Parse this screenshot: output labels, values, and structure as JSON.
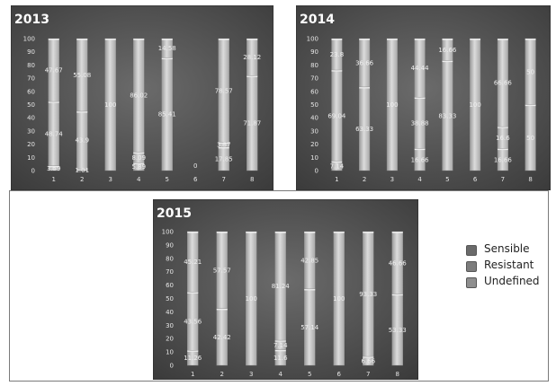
{
  "chart_data": [
    {
      "type": "bar",
      "stacked": true,
      "title": "2013",
      "categories": [
        "1",
        "2",
        "3",
        "4",
        "5",
        "6",
        "7",
        "8"
      ],
      "ylim": [
        0,
        100
      ],
      "yticks": [
        0,
        10,
        20,
        30,
        40,
        50,
        60,
        70,
        80,
        90,
        100
      ],
      "series": [
        {
          "name": "Sensible",
          "values": [
            47.67,
            55.08,
            0,
            86.02,
            14.58,
            0,
            78.57,
            28.12
          ]
        },
        {
          "name": "Resistant",
          "values": [
            48.74,
            43.9,
            100,
            8.09,
            85.41,
            0,
            3.57,
            71.87
          ]
        },
        {
          "name": "Undefined",
          "values": [
            3.59,
            1.01,
            0,
            5.89,
            0,
            0,
            17.85,
            0
          ]
        }
      ],
      "data_labels": [
        [
          "47.67",
          "48.74",
          "3.59"
        ],
        [
          "55.08",
          "43.9",
          "1.01"
        ],
        [
          "",
          "100",
          ""
        ],
        [
          "86.02",
          "8.09",
          "5.89"
        ],
        [
          "14.58",
          "85.41",
          ""
        ],
        [
          "",
          "0",
          ""
        ],
        [
          "78.57",
          "3.57",
          "17.85"
        ],
        [
          "28.12",
          "71.87",
          ""
        ]
      ]
    },
    {
      "type": "bar",
      "stacked": true,
      "title": "2014",
      "categories": [
        "1",
        "2",
        "3",
        "4",
        "5",
        "6",
        "7",
        "8"
      ],
      "ylim": [
        0,
        100
      ],
      "yticks": [
        0,
        10,
        20,
        30,
        40,
        50,
        60,
        70,
        80,
        90,
        100
      ],
      "series": [
        {
          "name": "Sensible",
          "values": [
            23.8,
            36.66,
            0,
            44.44,
            16.66,
            0,
            66.66,
            50
          ]
        },
        {
          "name": "Resistant",
          "values": [
            69.04,
            63.33,
            100,
            38.88,
            83.33,
            100,
            16.6,
            50
          ]
        },
        {
          "name": "Undefined",
          "values": [
            7.14,
            0,
            0,
            16.66,
            0,
            0,
            16.66,
            0
          ]
        }
      ],
      "data_labels": [
        [
          "23.8",
          "69.04",
          "7.14"
        ],
        [
          "36.66",
          "63.33",
          ""
        ],
        [
          "",
          "100",
          ""
        ],
        [
          "44.44",
          "38.88",
          "16.66"
        ],
        [
          "16.66",
          "83.33",
          ""
        ],
        [
          "",
          "100",
          ""
        ],
        [
          "66.66",
          "16.6",
          "16.66"
        ],
        [
          "50",
          "50",
          ""
        ]
      ]
    },
    {
      "type": "bar",
      "stacked": true,
      "title": "2015",
      "categories": [
        "1",
        "2",
        "3",
        "4",
        "5",
        "6",
        "7",
        "8"
      ],
      "ylim": [
        0,
        100
      ],
      "yticks": [
        0,
        10,
        20,
        30,
        40,
        50,
        60,
        70,
        80,
        90,
        100
      ],
      "series": [
        {
          "name": "Sensible",
          "values": [
            45.21,
            57.57,
            0,
            81.24,
            42.85,
            0,
            93.33,
            46.66
          ]
        },
        {
          "name": "Resistant",
          "values": [
            43.56,
            42.42,
            100,
            7.14,
            57.14,
            100,
            6.66,
            53.33
          ]
        },
        {
          "name": "Undefined",
          "values": [
            11.26,
            0,
            0,
            11.6,
            0,
            0,
            0,
            0
          ]
        }
      ],
      "data_labels": [
        [
          "45.21",
          "43.56",
          "11.26"
        ],
        [
          "57.57",
          "42.42",
          ""
        ],
        [
          "",
          "100",
          ""
        ],
        [
          "81.24",
          "7.14",
          "11.6"
        ],
        [
          "42.85",
          "57.14",
          ""
        ],
        [
          "",
          "100",
          ""
        ],
        [
          "93.33",
          "6.66",
          ""
        ],
        [
          "46.66",
          "53.33",
          ""
        ]
      ]
    }
  ],
  "legend": {
    "items": [
      {
        "name": "Sensible",
        "color": "#6a6a6a"
      },
      {
        "name": "Resistant",
        "color": "#7c7c7c"
      },
      {
        "name": "Undefined",
        "color": "#8e8e8e"
      }
    ]
  },
  "colors": {
    "panel_bg": "#4c4c4c",
    "bar_fill": "#bdbdbd",
    "bar_highlight": "#ececec",
    "text": "#e6e6e6",
    "title_text": "#ffffff"
  }
}
